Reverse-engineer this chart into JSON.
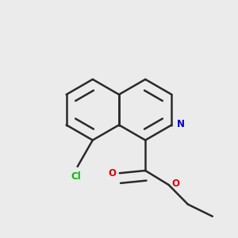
{
  "background_color": "#ebebeb",
  "bond_color": "#2a2a2a",
  "N_color": "#0000cc",
  "O_color": "#dd0000",
  "Cl_color": "#00bb00",
  "bond_width": 1.8,
  "dbo": 0.038,
  "figsize": [
    3.0,
    3.0
  ],
  "dpi": 100,
  "xlim": [
    0.05,
    0.95
  ],
  "ylim": [
    0.08,
    0.92
  ]
}
